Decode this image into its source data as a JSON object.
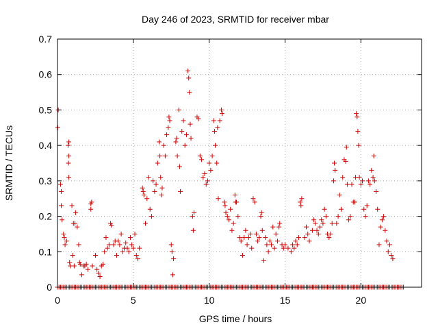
{
  "chart_data": {
    "type": "scatter",
    "title": "Day 246 of 2023, SRMTID for receiver mbar",
    "xlabel": "GPS time / hours",
    "ylabel": "SRMTID / TECUs",
    "xlim": [
      0,
      24
    ],
    "ylim": [
      0,
      0.7
    ],
    "x_ticks": [
      {
        "value": 0,
        "label": "0"
      },
      {
        "value": 5,
        "label": "5"
      },
      {
        "value": 10,
        "label": "10"
      },
      {
        "value": 15,
        "label": "15"
      },
      {
        "value": 20,
        "label": "20"
      }
    ],
    "y_ticks": [
      {
        "value": 0,
        "label": "0"
      },
      {
        "value": 0.1,
        "label": "0.1"
      },
      {
        "value": 0.2,
        "label": "0.2"
      },
      {
        "value": 0.3,
        "label": "0.3"
      },
      {
        "value": 0.4,
        "label": "0.4"
      },
      {
        "value": 0.5,
        "label": "0.5"
      },
      {
        "value": 0.6,
        "label": "0.6"
      },
      {
        "value": 0.7,
        "label": "0.7"
      }
    ],
    "grid": true,
    "marker": "plus",
    "color": "#cc0000",
    "series": [
      {
        "name": "SRMTID",
        "zero_baseline": {
          "start": 0,
          "end": 22.8,
          "step": 0.1,
          "value": 0
        },
        "points": [
          [
            0.02,
            0.45
          ],
          [
            0.05,
            0.5
          ],
          [
            0.2,
            0.29
          ],
          [
            0.25,
            0.27
          ],
          [
            0.25,
            0.23
          ],
          [
            0.3,
            0.19
          ],
          [
            0.4,
            0.15
          ],
          [
            0.45,
            0.14
          ],
          [
            0.5,
            0.12
          ],
          [
            0.6,
            0.13
          ],
          [
            0.7,
            0.4
          ],
          [
            0.75,
            0.41
          ],
          [
            0.75,
            0.37
          ],
          [
            0.72,
            0.35
          ],
          [
            0.75,
            0.31
          ],
          [
            0.8,
            0.07
          ],
          [
            0.85,
            0.06
          ],
          [
            0.95,
            0.23
          ],
          [
            1.0,
            0.09
          ],
          [
            1.05,
            0.18
          ],
          [
            1.1,
            0.06
          ],
          [
            1.15,
            0.18
          ],
          [
            1.2,
            0.21
          ],
          [
            1.3,
            0.17
          ],
          [
            1.4,
            0.12
          ],
          [
            1.45,
            0.07
          ],
          [
            1.5,
            0.065
          ],
          [
            1.6,
            0.035
          ],
          [
            1.7,
            0.06
          ],
          [
            1.8,
            0.06
          ],
          [
            1.9,
            0.065
          ],
          [
            2.0,
            0.05
          ],
          [
            2.2,
            0.235
          ],
          [
            2.25,
            0.24
          ],
          [
            2.2,
            0.22
          ],
          [
            2.3,
            0.06
          ],
          [
            2.5,
            0.09
          ],
          [
            2.6,
            0.05
          ],
          [
            2.7,
            0.04
          ],
          [
            2.8,
            0.03
          ],
          [
            2.9,
            0.06
          ],
          [
            3.0,
            0.065
          ],
          [
            3.1,
            0.1
          ],
          [
            3.2,
            0.14
          ],
          [
            3.3,
            0.11
          ],
          [
            3.4,
            0.12
          ],
          [
            3.5,
            0.18
          ],
          [
            3.55,
            0.175
          ],
          [
            3.7,
            0.12
          ],
          [
            3.8,
            0.13
          ],
          [
            3.9,
            0.09
          ],
          [
            4.0,
            0.13
          ],
          [
            4.1,
            0.12
          ],
          [
            4.2,
            0.15
          ],
          [
            4.3,
            0.1
          ],
          [
            4.4,
            0.11
          ],
          [
            4.5,
            0.125
          ],
          [
            4.6,
            0.11
          ],
          [
            4.7,
            0.1
          ],
          [
            4.8,
            0.14
          ],
          [
            4.9,
            0.12
          ],
          [
            5.0,
            0.11
          ],
          [
            5.1,
            0.15
          ],
          [
            5.2,
            0.09
          ],
          [
            5.3,
            0.08
          ],
          [
            5.4,
            0.11
          ],
          [
            5.6,
            0.28
          ],
          [
            5.65,
            0.27
          ],
          [
            5.7,
            0.26
          ],
          [
            5.8,
            0.18
          ],
          [
            5.9,
            0.25
          ],
          [
            6.0,
            0.31
          ],
          [
            6.1,
            0.22
          ],
          [
            6.2,
            0.2
          ],
          [
            6.3,
            0.3
          ],
          [
            6.4,
            0.27
          ],
          [
            6.5,
            0.29
          ],
          [
            6.6,
            0.35
          ],
          [
            6.7,
            0.41
          ],
          [
            6.75,
            0.37
          ],
          [
            6.8,
            0.31
          ],
          [
            6.85,
            0.26
          ],
          [
            6.9,
            0.28
          ],
          [
            7.0,
            0.4
          ],
          [
            7.1,
            0.37
          ],
          [
            7.2,
            0.43
          ],
          [
            7.3,
            0.45
          ],
          [
            7.35,
            0.48
          ],
          [
            7.4,
            0.47
          ],
          [
            7.5,
            0.12
          ],
          [
            7.55,
            0.1
          ],
          [
            7.6,
            0.035
          ],
          [
            7.65,
            0.08
          ],
          [
            7.8,
            0.41
          ],
          [
            7.85,
            0.42
          ],
          [
            7.9,
            0.37
          ],
          [
            8.0,
            0.5
          ],
          [
            8.05,
            0.34
          ],
          [
            8.1,
            0.27
          ],
          [
            8.2,
            0.44
          ],
          [
            8.3,
            0.47
          ],
          [
            8.4,
            0.4
          ],
          [
            8.5,
            0.43
          ],
          [
            8.6,
            0.61
          ],
          [
            8.65,
            0.59
          ],
          [
            8.7,
            0.55
          ],
          [
            8.75,
            0.46
          ],
          [
            8.8,
            0.42
          ],
          [
            8.9,
            0.2
          ],
          [
            8.95,
            0.16
          ],
          [
            9.0,
            0.21
          ],
          [
            9.2,
            0.48
          ],
          [
            9.3,
            0.475
          ],
          [
            9.4,
            0.37
          ],
          [
            9.5,
            0.36
          ],
          [
            9.6,
            0.31
          ],
          [
            9.7,
            0.32
          ],
          [
            9.8,
            0.29
          ],
          [
            9.9,
            0.3
          ],
          [
            10.0,
            0.35
          ],
          [
            10.1,
            0.33
          ],
          [
            10.2,
            0.37
          ],
          [
            10.3,
            0.47
          ],
          [
            10.35,
            0.44
          ],
          [
            10.4,
            0.4
          ],
          [
            10.5,
            0.35
          ],
          [
            10.55,
            0.45
          ],
          [
            10.6,
            0.25
          ],
          [
            10.7,
            0.47
          ],
          [
            10.8,
            0.5
          ],
          [
            10.85,
            0.49
          ],
          [
            11.0,
            0.24
          ],
          [
            11.05,
            0.23
          ],
          [
            11.1,
            0.21
          ],
          [
            11.2,
            0.2
          ],
          [
            11.3,
            0.19
          ],
          [
            11.4,
            0.22
          ],
          [
            11.5,
            0.16
          ],
          [
            11.6,
            0.18
          ],
          [
            11.7,
            0.26
          ],
          [
            11.75,
            0.24
          ],
          [
            11.8,
            0.24
          ],
          [
            11.9,
            0.2
          ],
          [
            12.0,
            0.14
          ],
          [
            12.1,
            0.13
          ],
          [
            12.2,
            0.09
          ],
          [
            12.3,
            0.14
          ],
          [
            12.4,
            0.16
          ],
          [
            12.5,
            0.12
          ],
          [
            12.6,
            0.14
          ],
          [
            12.7,
            0.15
          ],
          [
            12.8,
            0.11
          ],
          [
            12.9,
            0.25
          ],
          [
            13.0,
            0.24
          ],
          [
            13.1,
            0.15
          ],
          [
            13.2,
            0.13
          ],
          [
            13.3,
            0.14
          ],
          [
            13.4,
            0.2
          ],
          [
            13.45,
            0.21
          ],
          [
            13.5,
            0.16
          ],
          [
            13.6,
            0.075
          ],
          [
            13.7,
            0.14
          ],
          [
            13.8,
            0.12
          ],
          [
            13.9,
            0.1
          ],
          [
            14.0,
            0.13
          ],
          [
            14.1,
            0.12
          ],
          [
            14.2,
            0.17
          ],
          [
            14.3,
            0.11
          ],
          [
            14.4,
            0.15
          ],
          [
            14.5,
            0.13
          ],
          [
            14.6,
            0.17
          ],
          [
            14.65,
            0.18
          ],
          [
            14.8,
            0.12
          ],
          [
            14.9,
            0.11
          ],
          [
            15.0,
            0.12
          ],
          [
            15.2,
            0.11
          ],
          [
            15.4,
            0.1
          ],
          [
            15.5,
            0.12
          ],
          [
            15.6,
            0.11
          ],
          [
            15.7,
            0.13
          ],
          [
            15.8,
            0.12
          ],
          [
            15.9,
            0.14
          ],
          [
            16.0,
            0.24
          ],
          [
            16.05,
            0.23
          ],
          [
            16.1,
            0.25
          ],
          [
            16.3,
            0.14
          ],
          [
            16.4,
            0.17
          ],
          [
            16.5,
            0.15
          ],
          [
            16.6,
            0.13
          ],
          [
            16.8,
            0.16
          ],
          [
            16.9,
            0.19
          ],
          [
            17.0,
            0.18
          ],
          [
            17.1,
            0.16
          ],
          [
            17.2,
            0.15
          ],
          [
            17.3,
            0.17
          ],
          [
            17.4,
            0.19
          ],
          [
            17.5,
            0.18
          ],
          [
            17.6,
            0.22
          ],
          [
            17.7,
            0.2
          ],
          [
            17.8,
            0.15
          ],
          [
            17.9,
            0.14
          ],
          [
            18.0,
            0.15
          ],
          [
            18.1,
            0.18
          ],
          [
            18.2,
            0.3
          ],
          [
            18.25,
            0.35
          ],
          [
            18.3,
            0.33
          ],
          [
            18.4,
            0.18
          ],
          [
            18.5,
            0.2
          ],
          [
            18.6,
            0.26
          ],
          [
            18.7,
            0.22
          ],
          [
            18.8,
            0.31
          ],
          [
            18.9,
            0.36
          ],
          [
            19.0,
            0.355
          ],
          [
            19.05,
            0.395
          ],
          [
            19.1,
            0.29
          ],
          [
            19.2,
            0.19
          ],
          [
            19.3,
            0.2
          ],
          [
            19.4,
            0.29
          ],
          [
            19.5,
            0.24
          ],
          [
            19.6,
            0.24
          ],
          [
            19.65,
            0.31
          ],
          [
            19.7,
            0.49
          ],
          [
            19.75,
            0.48
          ],
          [
            19.8,
            0.44
          ],
          [
            19.85,
            0.4
          ],
          [
            19.9,
            0.31
          ],
          [
            20.0,
            0.29
          ],
          [
            20.1,
            0.3
          ],
          [
            20.2,
            0.22
          ],
          [
            20.3,
            0.2
          ],
          [
            20.4,
            0.23
          ],
          [
            20.5,
            0.3
          ],
          [
            20.6,
            0.29
          ],
          [
            20.7,
            0.33
          ],
          [
            20.8,
            0.31
          ],
          [
            20.85,
            0.37
          ],
          [
            20.9,
            0.3
          ],
          [
            21.0,
            0.27
          ],
          [
            21.1,
            0.22
          ],
          [
            21.2,
            0.12
          ],
          [
            21.3,
            0.17
          ],
          [
            21.4,
            0.19
          ],
          [
            21.5,
            0.2
          ],
          [
            21.6,
            0.16
          ],
          [
            21.7,
            0.13
          ],
          [
            21.8,
            0.1
          ],
          [
            21.9,
            0.12
          ],
          [
            22.0,
            0.09
          ],
          [
            22.1,
            0.08
          ]
        ]
      }
    ]
  }
}
